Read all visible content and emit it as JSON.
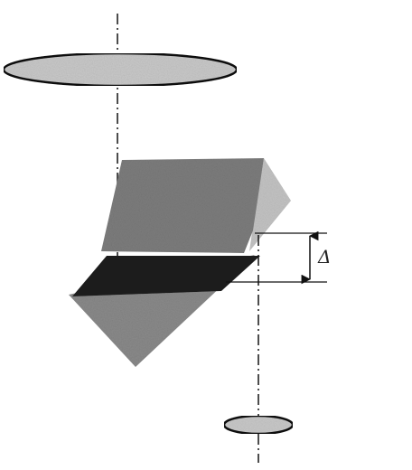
{
  "diagram": {
    "delta_label": "Δ"
  },
  "colors": {
    "lens_fill": "#c9c9c9",
    "lens_stroke": "#111111",
    "upper_prism_face": "#7d7d7d",
    "upper_prism_side": "#c4c4c4",
    "upper_prism_bottom": "#a8a8a8",
    "lower_prism_face": "#8a8a8a",
    "dark_band": "#1e1e1e",
    "axis_line": "#111111"
  }
}
